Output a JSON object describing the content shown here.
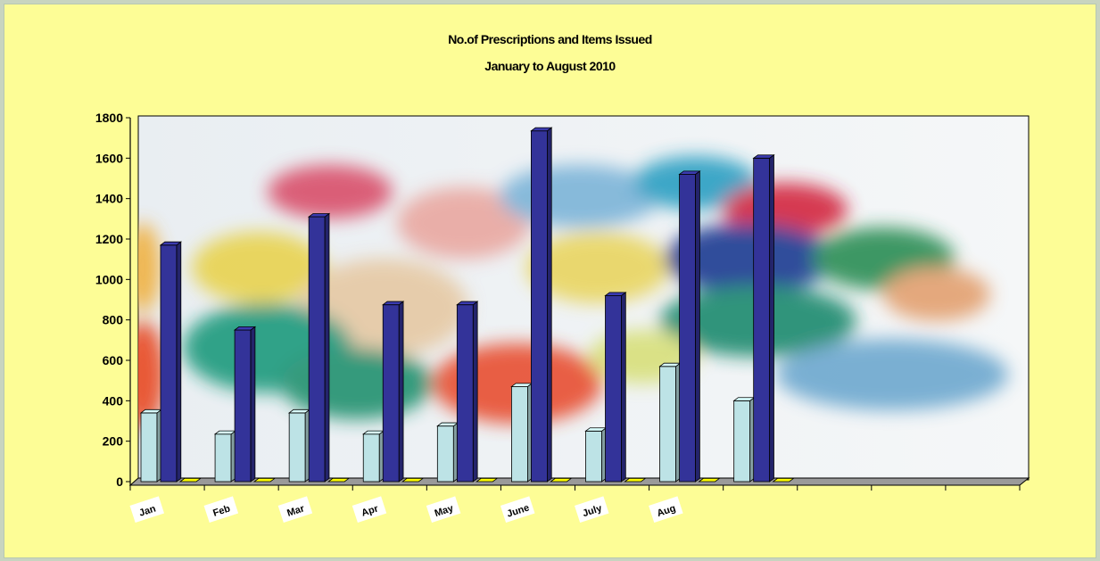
{
  "chart_data": {
    "type": "bar",
    "title": "No.of Prescriptions and Items Issued",
    "subtitle": "January to August 2010",
    "categories": [
      "Jan",
      "Feb",
      "Mar",
      "Apr",
      "May",
      "June",
      "July",
      "Aug",
      ""
    ],
    "series": [
      {
        "name": "",
        "values": [
          340,
          235,
          340,
          235,
          275,
          470,
          250,
          570,
          400
        ],
        "color": "#bde3e6"
      },
      {
        "name": "",
        "values": [
          1170,
          750,
          1310,
          875,
          875,
          1735,
          920,
          1520,
          1600
        ],
        "color": "#333399"
      },
      {
        "name": "",
        "values": [
          0,
          0,
          0,
          0,
          0,
          0,
          0,
          0,
          0
        ],
        "color": "#ffff00"
      }
    ],
    "ylim": [
      0,
      1800
    ],
    "yticks": [
      0,
      200,
      400,
      600,
      800,
      1000,
      1200,
      1400,
      1600,
      1800
    ],
    "category_slots": 12,
    "background_image": "pills-photo",
    "grid": false,
    "legend": "none"
  }
}
